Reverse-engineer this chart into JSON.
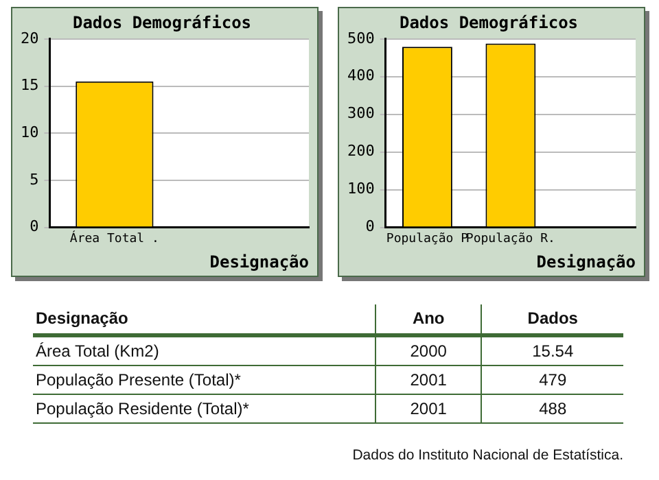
{
  "chart_data": [
    {
      "type": "bar",
      "title": "Dados Demográficos",
      "xlabel": "Designação",
      "categories": [
        "Área Total .",
        null
      ],
      "values": [
        15.5,
        null
      ],
      "color": "#ffcc00",
      "ylim": [
        0,
        20
      ],
      "yticks": [
        0,
        5,
        10,
        15,
        20
      ],
      "grid": "y"
    },
    {
      "type": "bar",
      "title": "Dados Demográficos",
      "xlabel": "Designação",
      "categories": [
        "População P",
        "População R.",
        null
      ],
      "values": [
        479,
        488,
        null
      ],
      "color": "#ffcc00",
      "ylim": [
        0,
        500
      ],
      "yticks": [
        0,
        100,
        200,
        300,
        400,
        500
      ],
      "grid": "y"
    },
    {
      "type": "other",
      "annotations": [
        "Designação",
        "Ano",
        "Dados",
        "Área Total (Km2)",
        "2000",
        "15.54",
        "População Presente (Total)*",
        "2001",
        "479",
        "População Residente (Total)*",
        "2001",
        "488",
        "Dados do Instituto Nacional de Estatística."
      ]
    }
  ]
}
